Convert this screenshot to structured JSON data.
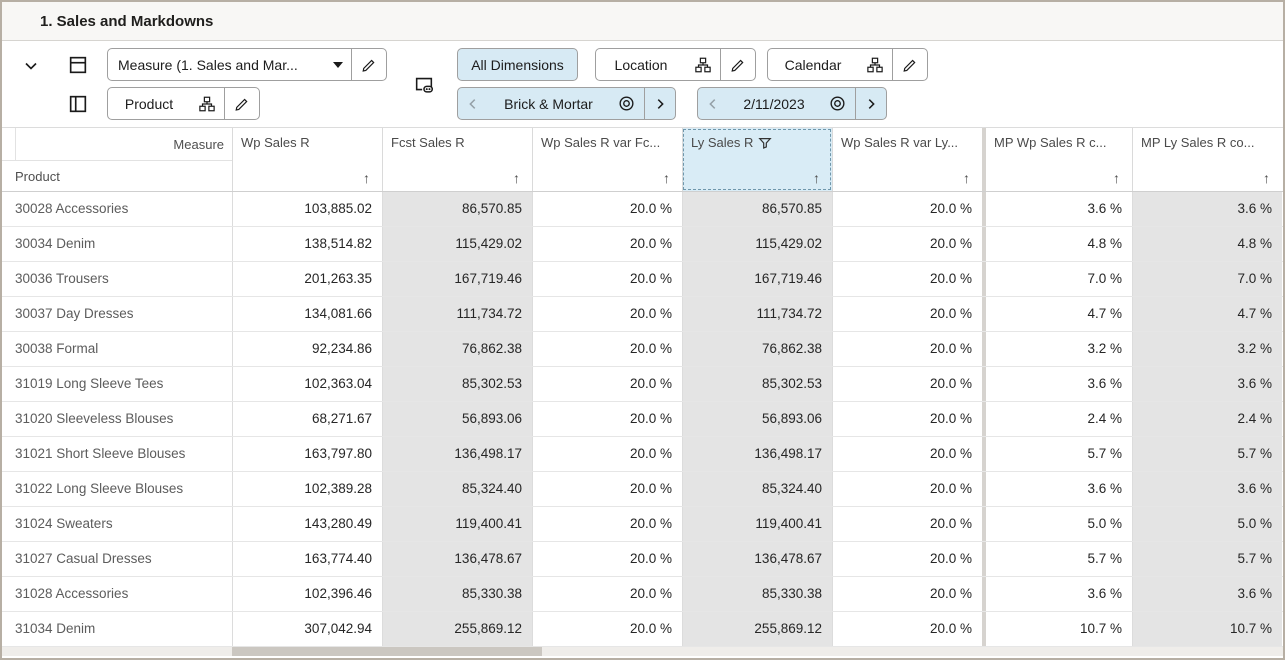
{
  "title": "1. Sales and Markdowns",
  "toolbar": {
    "measure_dropdown": {
      "label": "Measure (1. Sales and Mar..."
    },
    "product_chip": {
      "label": "Product"
    },
    "all_dimensions_label": "All Dimensions",
    "location_chip": {
      "label": "Location"
    },
    "calendar_chip": {
      "label": "Calendar"
    },
    "location_selector": {
      "value": "Brick & Mortar"
    },
    "calendar_selector": {
      "value": "2/11/2023"
    }
  },
  "grid": {
    "measure_label": "Measure",
    "product_label": "Product",
    "sort_arrow": "↑",
    "columns": [
      {
        "label": "Wp Sales R",
        "shaded": false,
        "selected": false,
        "filtered": false,
        "split": false
      },
      {
        "label": "Fcst Sales R",
        "shaded": true,
        "selected": false,
        "filtered": false,
        "split": false
      },
      {
        "label": "Wp Sales R var Fc...",
        "shaded": false,
        "selected": false,
        "filtered": false,
        "split": false
      },
      {
        "label": "Ly Sales R",
        "shaded": true,
        "selected": true,
        "filtered": true,
        "split": false
      },
      {
        "label": "Wp Sales R var Ly...",
        "shaded": false,
        "selected": false,
        "filtered": false,
        "split": false
      },
      {
        "label": "MP Wp Sales R c...",
        "shaded": false,
        "selected": false,
        "filtered": false,
        "split": true
      },
      {
        "label": "MP Ly Sales R co...",
        "shaded": true,
        "selected": false,
        "filtered": false,
        "split": false
      }
    ],
    "rows": [
      {
        "product": "30028 Accessories",
        "values": [
          "103,885.02",
          "86,570.85",
          "20.0 %",
          "86,570.85",
          "20.0 %",
          "3.6 %",
          "3.6 %"
        ]
      },
      {
        "product": "30034 Denim",
        "values": [
          "138,514.82",
          "115,429.02",
          "20.0 %",
          "115,429.02",
          "20.0 %",
          "4.8 %",
          "4.8 %"
        ]
      },
      {
        "product": "30036 Trousers",
        "values": [
          "201,263.35",
          "167,719.46",
          "20.0 %",
          "167,719.46",
          "20.0 %",
          "7.0 %",
          "7.0 %"
        ]
      },
      {
        "product": "30037 Day Dresses",
        "values": [
          "134,081.66",
          "111,734.72",
          "20.0 %",
          "111,734.72",
          "20.0 %",
          "4.7 %",
          "4.7 %"
        ]
      },
      {
        "product": "30038 Formal",
        "values": [
          "92,234.86",
          "76,862.38",
          "20.0 %",
          "76,862.38",
          "20.0 %",
          "3.2 %",
          "3.2 %"
        ]
      },
      {
        "product": "31019 Long Sleeve Tees",
        "values": [
          "102,363.04",
          "85,302.53",
          "20.0 %",
          "85,302.53",
          "20.0 %",
          "3.6 %",
          "3.6 %"
        ]
      },
      {
        "product": "31020 Sleeveless Blouses",
        "values": [
          "68,271.67",
          "56,893.06",
          "20.0 %",
          "56,893.06",
          "20.0 %",
          "2.4 %",
          "2.4 %"
        ]
      },
      {
        "product": "31021 Short Sleeve Blouses",
        "values": [
          "163,797.80",
          "136,498.17",
          "20.0 %",
          "136,498.17",
          "20.0 %",
          "5.7 %",
          "5.7 %"
        ]
      },
      {
        "product": "31022 Long Sleeve Blouses",
        "values": [
          "102,389.28",
          "85,324.40",
          "20.0 %",
          "85,324.40",
          "20.0 %",
          "3.6 %",
          "3.6 %"
        ]
      },
      {
        "product": "31024 Sweaters",
        "values": [
          "143,280.49",
          "119,400.41",
          "20.0 %",
          "119,400.41",
          "20.0 %",
          "5.0 %",
          "5.0 %"
        ]
      },
      {
        "product": "31027 Casual Dresses",
        "values": [
          "163,774.40",
          "136,478.67",
          "20.0 %",
          "136,478.67",
          "20.0 %",
          "5.7 %",
          "5.7 %"
        ]
      },
      {
        "product": "31028 Accessories",
        "values": [
          "102,396.46",
          "85,330.38",
          "20.0 %",
          "85,330.38",
          "20.0 %",
          "3.6 %",
          "3.6 %"
        ]
      },
      {
        "product": "31034 Denim",
        "values": [
          "307,042.94",
          "255,869.12",
          "20.0 %",
          "255,869.12",
          "20.0 %",
          "10.7 %",
          "10.7 %"
        ]
      }
    ]
  },
  "colors": {
    "accent_blue": "#d7eaf4",
    "shaded_column": "#e4e4e4",
    "frame": "#b7afa4"
  }
}
